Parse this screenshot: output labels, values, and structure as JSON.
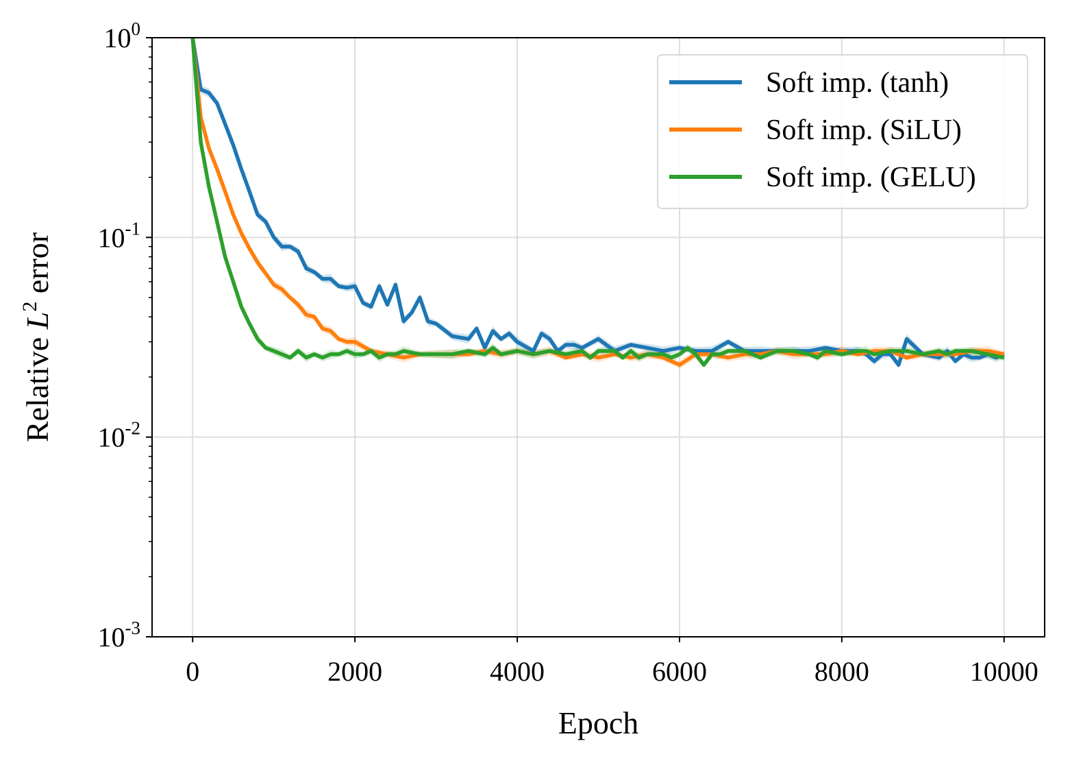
{
  "chart_data": {
    "type": "line",
    "title": "",
    "xlabel": "Epoch",
    "ylabel": {
      "prefix": "Relative ",
      "var": "L",
      "sup": "2",
      "suffix": " error"
    },
    "xlim": [
      -500,
      10500
    ],
    "ylim": [
      0.001,
      1
    ],
    "yscale": "log",
    "grid": true,
    "legend_position": "top-right",
    "x_ticks": [
      "0",
      "2000",
      "4000",
      "6000",
      "8000",
      "10000"
    ],
    "x_tick_values": [
      0,
      2000,
      4000,
      6000,
      8000,
      10000
    ],
    "y_ticks": [
      {
        "base": "10",
        "exp": "-3",
        "value": 0.001
      },
      {
        "base": "10",
        "exp": "-2",
        "value": 0.01
      },
      {
        "base": "10",
        "exp": "-1",
        "value": 0.1
      },
      {
        "base": "10",
        "exp": "0",
        "value": 1
      }
    ],
    "colors": {
      "tanh": "#1f77b4",
      "silu": "#ff7f0e",
      "gelu": "#2ca02c"
    },
    "series": [
      {
        "key": "tanh",
        "name": "Soft imp. (tanh)",
        "x": [
          0,
          100,
          200,
          300,
          400,
          500,
          600,
          700,
          800,
          900,
          1000,
          1100,
          1200,
          1300,
          1400,
          1500,
          1600,
          1700,
          1800,
          1900,
          2000,
          2100,
          2200,
          2300,
          2400,
          2500,
          2600,
          2700,
          2800,
          2900,
          3000,
          3200,
          3400,
          3500,
          3600,
          3700,
          3800,
          3900,
          4000,
          4200,
          4300,
          4400,
          4500,
          4600,
          4700,
          4800,
          5000,
          5200,
          5400,
          5600,
          5800,
          6000,
          6200,
          6400,
          6600,
          6800,
          7000,
          7200,
          7400,
          7600,
          7800,
          8000,
          8200,
          8300,
          8400,
          8500,
          8600,
          8700,
          8800,
          9000,
          9200,
          9300,
          9400,
          9500,
          9600,
          9700,
          9800,
          9900,
          10000
        ],
        "values": [
          1.0,
          0.55,
          0.53,
          0.47,
          0.37,
          0.29,
          0.22,
          0.17,
          0.13,
          0.12,
          0.1,
          0.09,
          0.09,
          0.085,
          0.07,
          0.067,
          0.062,
          0.062,
          0.057,
          0.056,
          0.057,
          0.047,
          0.045,
          0.057,
          0.046,
          0.058,
          0.038,
          0.042,
          0.05,
          0.038,
          0.037,
          0.032,
          0.031,
          0.035,
          0.028,
          0.034,
          0.031,
          0.033,
          0.03,
          0.027,
          0.033,
          0.031,
          0.027,
          0.029,
          0.029,
          0.028,
          0.031,
          0.027,
          0.029,
          0.028,
          0.027,
          0.028,
          0.027,
          0.027,
          0.03,
          0.027,
          0.027,
          0.027,
          0.027,
          0.027,
          0.028,
          0.027,
          0.027,
          0.026,
          0.024,
          0.026,
          0.026,
          0.023,
          0.031,
          0.026,
          0.025,
          0.027,
          0.024,
          0.026,
          0.025,
          0.025,
          0.026,
          0.025,
          0.026
        ]
      },
      {
        "key": "silu",
        "name": "Soft imp. (SiLU)",
        "x": [
          0,
          100,
          200,
          300,
          400,
          500,
          600,
          700,
          800,
          900,
          1000,
          1100,
          1200,
          1300,
          1400,
          1500,
          1600,
          1700,
          1800,
          1900,
          2000,
          2200,
          2400,
          2600,
          2800,
          3000,
          3200,
          3400,
          3600,
          3800,
          4000,
          4200,
          4400,
          4600,
          4800,
          5000,
          5200,
          5400,
          5600,
          5800,
          6000,
          6200,
          6400,
          6600,
          6800,
          7000,
          7200,
          7400,
          7600,
          7800,
          8000,
          8200,
          8400,
          8600,
          8800,
          9000,
          9200,
          9400,
          9600,
          9800,
          10000
        ],
        "values": [
          1.0,
          0.4,
          0.28,
          0.22,
          0.17,
          0.13,
          0.105,
          0.088,
          0.075,
          0.066,
          0.058,
          0.055,
          0.05,
          0.046,
          0.041,
          0.04,
          0.035,
          0.034,
          0.031,
          0.03,
          0.03,
          0.027,
          0.026,
          0.025,
          0.026,
          0.026,
          0.026,
          0.026,
          0.027,
          0.026,
          0.027,
          0.026,
          0.027,
          0.025,
          0.026,
          0.025,
          0.026,
          0.025,
          0.026,
          0.025,
          0.023,
          0.026,
          0.026,
          0.025,
          0.026,
          0.026,
          0.027,
          0.026,
          0.026,
          0.026,
          0.027,
          0.026,
          0.027,
          0.027,
          0.025,
          0.026,
          0.026,
          0.026,
          0.027,
          0.027,
          0.026
        ]
      },
      {
        "key": "gelu",
        "name": "Soft imp. (GELU)",
        "x": [
          0,
          100,
          200,
          300,
          400,
          500,
          600,
          700,
          800,
          900,
          1000,
          1100,
          1200,
          1300,
          1400,
          1500,
          1600,
          1700,
          1800,
          1900,
          2000,
          2100,
          2200,
          2300,
          2400,
          2500,
          2600,
          2800,
          3000,
          3200,
          3400,
          3600,
          3700,
          3800,
          4000,
          4200,
          4400,
          4600,
          4800,
          4900,
          5000,
          5200,
          5300,
          5400,
          5500,
          5600,
          5800,
          5900,
          6000,
          6100,
          6200,
          6300,
          6400,
          6500,
          6600,
          6800,
          6900,
          7000,
          7200,
          7400,
          7600,
          7700,
          7800,
          8000,
          8200,
          8300,
          8400,
          8600,
          8800,
          9000,
          9200,
          9300,
          9400,
          9600,
          9800,
          10000
        ],
        "values": [
          1.0,
          0.3,
          0.18,
          0.12,
          0.08,
          0.06,
          0.045,
          0.037,
          0.031,
          0.028,
          0.027,
          0.026,
          0.025,
          0.027,
          0.025,
          0.026,
          0.025,
          0.026,
          0.026,
          0.027,
          0.026,
          0.026,
          0.027,
          0.025,
          0.026,
          0.026,
          0.027,
          0.026,
          0.026,
          0.026,
          0.027,
          0.026,
          0.028,
          0.026,
          0.027,
          0.026,
          0.027,
          0.026,
          0.027,
          0.025,
          0.027,
          0.027,
          0.025,
          0.027,
          0.025,
          0.026,
          0.026,
          0.025,
          0.026,
          0.028,
          0.026,
          0.023,
          0.026,
          0.026,
          0.027,
          0.027,
          0.026,
          0.025,
          0.027,
          0.027,
          0.026,
          0.025,
          0.027,
          0.026,
          0.027,
          0.027,
          0.026,
          0.027,
          0.027,
          0.026,
          0.027,
          0.026,
          0.027,
          0.027,
          0.026,
          0.025
        ]
      }
    ]
  }
}
